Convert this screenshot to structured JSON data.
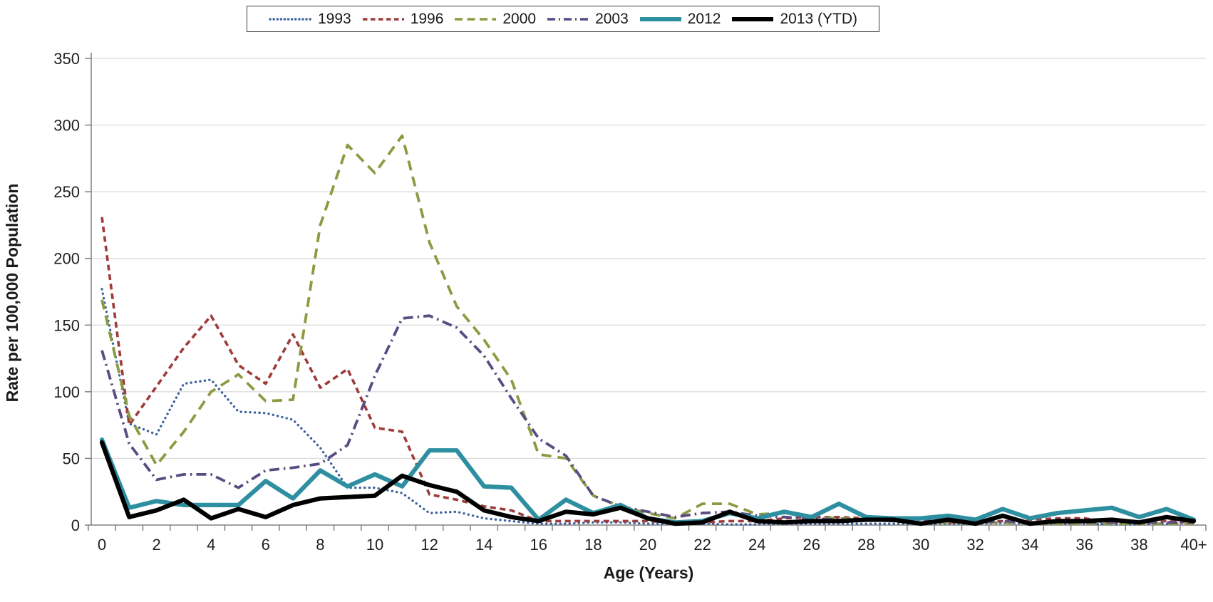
{
  "chart_data": {
    "type": "line",
    "title": "",
    "xlabel": "Age (Years)",
    "ylabel": "Rate per 100,000 Population",
    "x": [
      0,
      1,
      2,
      3,
      4,
      5,
      6,
      7,
      8,
      9,
      10,
      11,
      12,
      13,
      14,
      15,
      16,
      17,
      18,
      19,
      20,
      21,
      22,
      23,
      24,
      25,
      26,
      27,
      28,
      29,
      30,
      31,
      32,
      33,
      34,
      35,
      36,
      37,
      38,
      39,
      40
    ],
    "x_tick_labels": [
      "0",
      "2",
      "4",
      "6",
      "8",
      "10",
      "12",
      "14",
      "16",
      "18",
      "20",
      "22",
      "24",
      "26",
      "28",
      "30",
      "32",
      "34",
      "36",
      "38",
      "40+"
    ],
    "yticks": [
      0,
      50,
      100,
      150,
      200,
      250,
      300,
      350
    ],
    "ylim": [
      0,
      350
    ],
    "grid": true,
    "legend_position": "top-center",
    "series": [
      {
        "name": "1993",
        "color": "#3D639E",
        "style": "dotted",
        "values": [
          177,
          76,
          68,
          106,
          109,
          85,
          84,
          79,
          58,
          28,
          28,
          24,
          9,
          10,
          5,
          3,
          1,
          1,
          2,
          2,
          1,
          1,
          1,
          0.5,
          0.5,
          1,
          1,
          1,
          1,
          1,
          1,
          1,
          1,
          1.5,
          1,
          1,
          1,
          0.5,
          0.5,
          1,
          2
        ]
      },
      {
        "name": "1996",
        "color": "#9E3B3B",
        "style": "dashed",
        "values": [
          231,
          75,
          104,
          133,
          157,
          120,
          106,
          143,
          103,
          117,
          73,
          70,
          23,
          19,
          14,
          11,
          3,
          3,
          3,
          3,
          3,
          2,
          2,
          3,
          3,
          5,
          6,
          6,
          5,
          4,
          2,
          2,
          2,
          3,
          4,
          5,
          5,
          2,
          2,
          3,
          2
        ]
      },
      {
        "name": "2000",
        "color": "#8C9B42",
        "style": "longdash",
        "values": [
          169,
          82,
          45,
          70,
          100,
          113,
          93,
          94,
          225,
          285,
          264,
          292,
          212,
          164,
          139,
          109,
          53,
          50,
          22,
          14,
          9,
          5,
          16,
          16,
          8,
          9,
          6,
          5,
          4,
          3,
          2,
          2,
          2,
          2,
          1,
          1,
          1,
          1,
          1,
          1,
          1
        ]
      },
      {
        "name": "2003",
        "color": "#5A4C82",
        "style": "dashdot",
        "values": [
          131,
          61,
          34,
          38,
          38,
          28,
          41,
          43,
          46,
          60,
          112,
          155,
          157,
          148,
          127,
          95,
          65,
          52,
          22,
          14,
          10,
          6,
          9,
          10,
          7,
          6,
          5,
          4,
          4,
          3,
          3,
          3,
          2,
          3,
          2,
          2,
          2,
          2,
          2,
          2,
          2
        ]
      },
      {
        "name": "2012",
        "color": "#2E8FA0",
        "style": "solid",
        "values": [
          64,
          13,
          18,
          15,
          15,
          15,
          33,
          20,
          41,
          29,
          38,
          29,
          56,
          56,
          29,
          28,
          4,
          19,
          9,
          15,
          5,
          2,
          3,
          9,
          5,
          10,
          6,
          16,
          6,
          5,
          5,
          7,
          4,
          12,
          5,
          9,
          11,
          13,
          6,
          12,
          4
        ]
      },
      {
        "name": "2013 (YTD)",
        "color": "#000000",
        "style": "solid",
        "values": [
          62,
          6,
          11,
          19,
          5,
          12,
          6,
          15,
          20,
          21,
          22,
          37,
          30,
          25,
          11,
          6,
          3,
          10,
          8,
          13,
          5,
          1,
          2,
          10,
          3,
          2,
          3,
          3,
          4,
          4,
          1,
          4,
          1,
          7,
          1,
          3,
          3,
          4,
          2,
          6,
          3
        ]
      }
    ]
  },
  "colors": {
    "gridline": "#D9D9D9",
    "axis": "#808080",
    "tick_text": "#1F1F1F",
    "background": "#FFFFFF"
  }
}
